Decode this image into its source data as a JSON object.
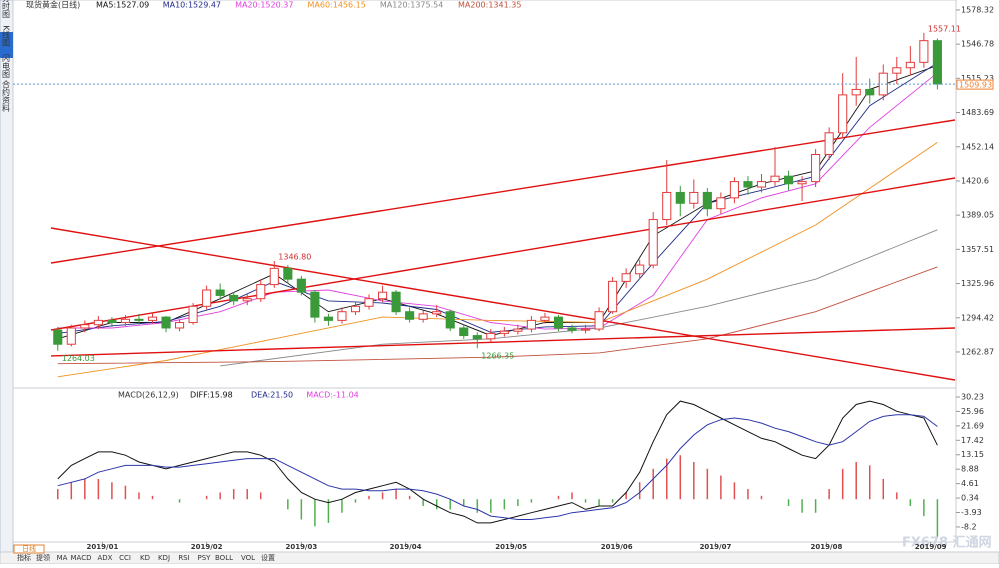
{
  "chart_data": {
    "type": "candlestick",
    "title": "现货黄金(日线)",
    "xlim": [
      -0.5,
      66.3
    ],
    "ylim": [
      1232.4,
      1587.5
    ],
    "yticks": [
      1578.32,
      1546.78,
      1515.23,
      1483.69,
      1452.14,
      1420.6,
      1389.05,
      1357.51,
      1325.96,
      1294.42,
      1262.87
    ],
    "xticks": [
      {
        "value": 3.3,
        "label": "2019/01"
      },
      {
        "value": 11,
        "label": "2019/02"
      },
      {
        "value": 18,
        "label": "2019/03"
      },
      {
        "value": 25.7,
        "label": "2019/04"
      },
      {
        "value": 33.5,
        "label": "2019/05"
      },
      {
        "value": 41.3,
        "label": "2019/06"
      },
      {
        "value": 48.6,
        "label": "2019/07"
      },
      {
        "value": 56.8,
        "label": "2019/08"
      },
      {
        "value": 64.5,
        "label": "2019/09"
      }
    ],
    "up_color": "#e23b3b",
    "down_color": "#3a9a3a",
    "ohlc": [
      [
        1283,
        1286,
        1264.03,
        1270
      ],
      [
        1270,
        1288,
        1268,
        1285
      ],
      [
        1285,
        1292,
        1281,
        1288
      ],
      [
        1288,
        1296,
        1284,
        1292
      ],
      [
        1292,
        1295,
        1286,
        1290
      ],
      [
        1290,
        1297,
        1287,
        1293
      ],
      [
        1293,
        1298,
        1288,
        1292
      ],
      [
        1292,
        1299,
        1289,
        1295
      ],
      [
        1295,
        1296,
        1281,
        1285
      ],
      [
        1285,
        1293,
        1282,
        1290
      ],
      [
        1290,
        1308,
        1288,
        1305
      ],
      [
        1305,
        1324,
        1302,
        1320
      ],
      [
        1320,
        1326,
        1311,
        1315
      ],
      [
        1315,
        1318,
        1306,
        1310
      ],
      [
        1310,
        1316,
        1306,
        1312
      ],
      [
        1312,
        1330,
        1309,
        1325
      ],
      [
        1325,
        1346.8,
        1322,
        1340
      ],
      [
        1340,
        1343,
        1326,
        1330
      ],
      [
        1330,
        1333,
        1315,
        1318
      ],
      [
        1318,
        1320,
        1290,
        1295
      ],
      [
        1295,
        1298,
        1287,
        1292
      ],
      [
        1292,
        1304,
        1289,
        1300
      ],
      [
        1300,
        1309,
        1297,
        1305
      ],
      [
        1305,
        1316,
        1302,
        1312
      ],
      [
        1312,
        1324,
        1309,
        1318
      ],
      [
        1318,
        1320,
        1297,
        1300
      ],
      [
        1300,
        1304,
        1290,
        1293
      ],
      [
        1293,
        1301,
        1290,
        1298
      ],
      [
        1298,
        1306,
        1295,
        1300
      ],
      [
        1300,
        1302,
        1282,
        1285
      ],
      [
        1285,
        1288,
        1275,
        1278
      ],
      [
        1278,
        1281,
        1266.35,
        1275
      ],
      [
        1275,
        1284,
        1272,
        1280
      ],
      [
        1280,
        1286,
        1277,
        1282
      ],
      [
        1282,
        1288,
        1279,
        1284
      ],
      [
        1284,
        1296,
        1281,
        1292
      ],
      [
        1292,
        1299,
        1289,
        1295
      ],
      [
        1295,
        1297,
        1282,
        1285
      ],
      [
        1285,
        1288,
        1280,
        1283
      ],
      [
        1283,
        1288,
        1280,
        1284
      ],
      [
        1284,
        1304,
        1282,
        1300
      ],
      [
        1300,
        1332,
        1298,
        1328
      ],
      [
        1328,
        1340,
        1322,
        1335
      ],
      [
        1335,
        1348,
        1330,
        1343
      ],
      [
        1343,
        1392,
        1340,
        1385
      ],
      [
        1385,
        1440,
        1380,
        1410
      ],
      [
        1410,
        1416,
        1388,
        1400
      ],
      [
        1400,
        1422,
        1395,
        1410
      ],
      [
        1410,
        1414,
        1388,
        1395
      ],
      [
        1395,
        1410,
        1390,
        1405
      ],
      [
        1405,
        1424,
        1400,
        1420
      ],
      [
        1420,
        1425,
        1408,
        1415
      ],
      [
        1415,
        1427,
        1410,
        1420
      ],
      [
        1420,
        1452,
        1416,
        1425
      ],
      [
        1425,
        1430,
        1412,
        1418
      ],
      [
        1418,
        1425,
        1402,
        1420
      ],
      [
        1420,
        1450,
        1415,
        1445
      ],
      [
        1445,
        1470,
        1440,
        1465
      ],
      [
        1465,
        1520,
        1460,
        1500
      ],
      [
        1500,
        1535,
        1490,
        1505
      ],
      [
        1505,
        1515,
        1492,
        1500
      ],
      [
        1500,
        1528,
        1495,
        1520
      ],
      [
        1520,
        1535,
        1510,
        1525
      ],
      [
        1525,
        1545,
        1518,
        1530
      ],
      [
        1530,
        1557.11,
        1525,
        1550
      ],
      [
        1550,
        1552,
        1505,
        1510
      ]
    ],
    "annotations": [
      {
        "text": "1557.11",
        "x": 64,
        "y": 1557.11
      },
      {
        "text": "1346.80",
        "x": 16,
        "y": 1346.8
      },
      {
        "text": "1266.35",
        "x": 31,
        "y": 1266.35
      },
      {
        "text": "1264.03",
        "x": 0,
        "y": 1264.03
      }
    ],
    "last_price": {
      "value": 1509.93,
      "label": "1509.93"
    },
    "ma_series": [
      {
        "name": "MA5:1527.09",
        "color": "#111111",
        "x": [
          0,
          4,
          8,
          12,
          16,
          20,
          24,
          28,
          32,
          36,
          40,
          44,
          48,
          52,
          56,
          60,
          65
        ],
        "values": [
          1275,
          1290,
          1290,
          1312,
          1335,
          1300,
          1312,
          1298,
          1278,
          1290,
          1290,
          1370,
          1400,
          1418,
          1430,
          1505,
          1527.09
        ]
      },
      {
        "name": "MA10:1529.47",
        "color": "#1f2a8a",
        "x": [
          0,
          4,
          8,
          12,
          16,
          20,
          24,
          28,
          32,
          36,
          40,
          44,
          48,
          52,
          56,
          60,
          65
        ],
        "values": [
          1280,
          1287,
          1291,
          1305,
          1328,
          1310,
          1308,
          1302,
          1281,
          1286,
          1287,
          1345,
          1400,
          1412,
          1425,
          1490,
          1529.47
        ]
      },
      {
        "name": "MA20:1520.37",
        "color": "#e040e0",
        "x": [
          0,
          4,
          8,
          12,
          16,
          20,
          24,
          28,
          32,
          36,
          40,
          44,
          48,
          52,
          56,
          60,
          65
        ],
        "values": [
          1285,
          1285,
          1290,
          1300,
          1318,
          1320,
          1310,
          1305,
          1290,
          1284,
          1285,
          1315,
          1385,
          1405,
          1418,
          1470,
          1520.37
        ]
      },
      {
        "name": "MA60:1456.15",
        "color": "#f0901e",
        "x": [
          0,
          8,
          16,
          24,
          32,
          40,
          48,
          56,
          65
        ],
        "values": [
          1240,
          1255,
          1275,
          1295,
          1292,
          1290,
          1330,
          1380,
          1456.15
        ]
      },
      {
        "name": "MA120:1375.54",
        "color": "#888888",
        "x": [
          12,
          24,
          32,
          40,
          48,
          56,
          65
        ],
        "values": [
          1250,
          1270,
          1275,
          1285,
          1305,
          1330,
          1375.54
        ]
      },
      {
        "name": "MA200:1341.35",
        "color": "#c0503c",
        "x": [
          0,
          16,
          32,
          40,
          48,
          56,
          65
        ],
        "values": [
          1252,
          1254,
          1258,
          1262,
          1275,
          1300,
          1341.35
        ]
      }
    ],
    "trend_lines": [
      {
        "x": [
          -0.5,
          66.3
        ],
        "y": [
          1344.9,
          1476.8
        ]
      },
      {
        "x": [
          -0.5,
          66.3
        ],
        "y": [
          1283.1,
          1423.3
        ]
      },
      {
        "x": [
          -0.5,
          66.3
        ],
        "y": [
          1377.2,
          1237.0
        ]
      },
      {
        "x": [
          -0.5,
          66.3
        ],
        "y": [
          1259.2,
          1285.0
        ]
      }
    ],
    "macd": {
      "title": "MACD(26,12,9)",
      "labels": [
        "DIFF:15.98",
        "DEA:21.50",
        "MACD:-11.04"
      ],
      "ylim": [
        -12.65,
        31.7
      ],
      "yticks": [
        30.23,
        25.96,
        21.69,
        17.42,
        13.15,
        8.88,
        4.61,
        0.34,
        -3.93,
        -8.2
      ],
      "hist": [
        3,
        5,
        6,
        6,
        5,
        4,
        2,
        1,
        0,
        -1,
        0,
        1,
        2,
        3,
        3,
        2,
        0,
        -3,
        -6,
        -8,
        -7,
        -4,
        -1,
        1,
        2,
        3,
        1,
        -2,
        -3,
        -3,
        -2,
        -4,
        -4,
        -3,
        -2,
        -1,
        0,
        1,
        2,
        -1,
        -2,
        -1,
        2,
        5,
        9,
        12,
        13,
        11,
        9,
        7,
        5,
        3,
        1,
        0,
        -2,
        -4,
        -4,
        3,
        9,
        11,
        10,
        6,
        2,
        -2,
        -5,
        -11.04
      ],
      "diff": [
        6,
        10,
        12,
        14,
        14,
        13,
        11,
        10,
        9,
        10,
        11,
        12,
        13,
        14,
        14,
        13,
        11,
        6,
        2,
        0,
        -1,
        0,
        2,
        3,
        4,
        5,
        3,
        0,
        -2,
        -4,
        -5,
        -7,
        -7,
        -6,
        -5,
        -4,
        -3,
        -2,
        -1,
        -3,
        -2,
        -2,
        2,
        8,
        17,
        25,
        29,
        28,
        26,
        24,
        22,
        20,
        18,
        17,
        15,
        13,
        12,
        16,
        24,
        28,
        29,
        28,
        26,
        25,
        24,
        15.98
      ],
      "dea": [
        4,
        5,
        6,
        8,
        9,
        10,
        10,
        10,
        9.5,
        9.5,
        10,
        10.5,
        11,
        11.5,
        12,
        12,
        12,
        10,
        8,
        6,
        4,
        3,
        3,
        2.5,
        2.5,
        3,
        3,
        2.5,
        1.5,
        0,
        -2,
        -3,
        -5,
        -5.5,
        -6,
        -6,
        -5.5,
        -5,
        -4,
        -3.5,
        -3,
        -2.5,
        -1,
        2,
        6,
        10,
        15,
        19,
        22,
        23.5,
        24,
        23.5,
        22.5,
        21,
        20,
        18.5,
        17,
        16,
        17,
        20,
        23,
        24.5,
        25,
        25,
        24.5,
        21.5
      ]
    }
  },
  "side_tabs": [
    "分时图",
    "K线图",
    "闪电图",
    "合约资料"
  ],
  "period": "日线",
  "toolbar": [
    "指标",
    "提领",
    "MA",
    "MACD",
    "ADX",
    "CCI",
    "KD",
    "KDJ",
    "RSI",
    "PSY",
    "BOLL",
    "VOL",
    "设置"
  ],
  "watermark": "FX678 汇通网"
}
